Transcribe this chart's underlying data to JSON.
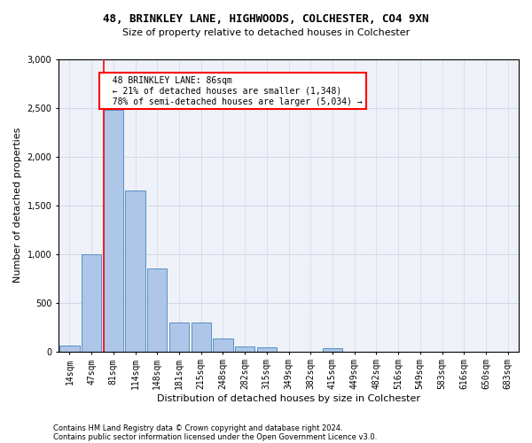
{
  "title_line1": "48, BRINKLEY LANE, HIGHWOODS, COLCHESTER, CO4 9XN",
  "title_line2": "Size of property relative to detached houses in Colchester",
  "xlabel": "Distribution of detached houses by size in Colchester",
  "ylabel": "Number of detached properties",
  "annotation_line1": "48 BRINKLEY LANE: 86sqm",
  "annotation_line2": "← 21% of detached houses are smaller (1,348)",
  "annotation_line3": "78% of semi-detached houses are larger (5,034) →",
  "footer_line1": "Contains HM Land Registry data © Crown copyright and database right 2024.",
  "footer_line2": "Contains public sector information licensed under the Open Government Licence v3.0.",
  "categories": [
    "14sqm",
    "47sqm",
    "81sqm",
    "114sqm",
    "148sqm",
    "181sqm",
    "215sqm",
    "248sqm",
    "282sqm",
    "315sqm",
    "349sqm",
    "382sqm",
    "415sqm",
    "449sqm",
    "482sqm",
    "516sqm",
    "549sqm",
    "583sqm",
    "616sqm",
    "650sqm",
    "683sqm"
  ],
  "values": [
    60,
    1000,
    2480,
    1650,
    850,
    300,
    295,
    130,
    55,
    45,
    0,
    0,
    30,
    0,
    0,
    0,
    0,
    0,
    0,
    0,
    0
  ],
  "bar_color": "#aec6e8",
  "bar_edge_color": "#5a8fc2",
  "vline_x_index": 2,
  "vline_color": "red",
  "annotation_box_edge_color": "red",
  "annotation_box_facecolor": "white",
  "ylim": [
    0,
    3000
  ],
  "yticks": [
    0,
    500,
    1000,
    1500,
    2000,
    2500,
    3000
  ],
  "grid_color": "#d0d8e8",
  "bg_color": "#eef2f8",
  "title1_fontsize": 9,
  "title2_fontsize": 8,
  "ylabel_fontsize": 8,
  "xlabel_fontsize": 8,
  "tick_fontsize": 7,
  "annotation_fontsize": 7,
  "footer_fontsize": 6
}
